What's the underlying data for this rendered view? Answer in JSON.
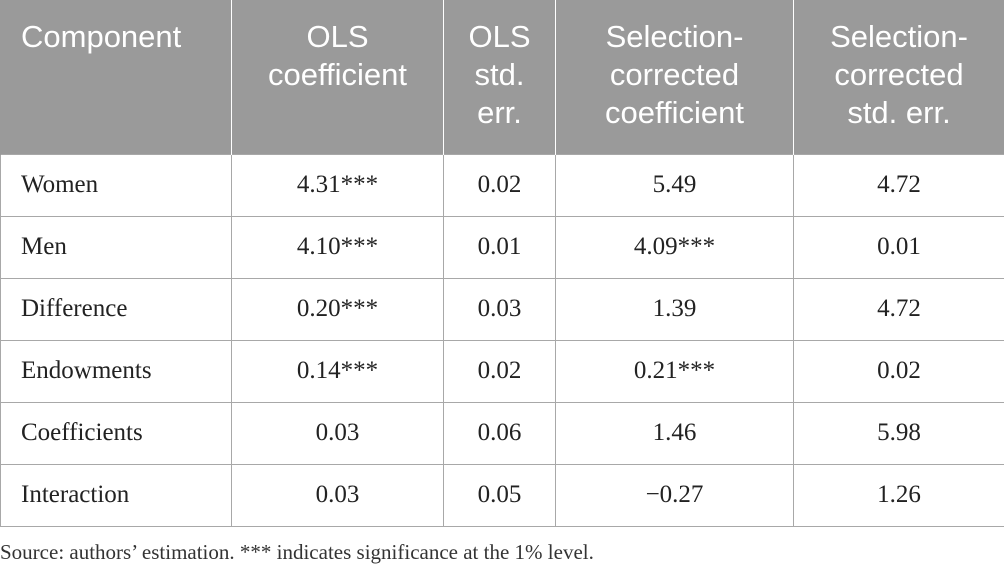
{
  "table": {
    "headers": [
      "Component",
      "OLS coefficient",
      "OLS std. err.",
      "Selection-corrected coefficient",
      "Selection-corrected std. err."
    ],
    "rows": [
      [
        "Women",
        "4.31***",
        "0.02",
        "5.49",
        "4.72"
      ],
      [
        "Men",
        "4.10***",
        "0.01",
        "4.09***",
        "0.01"
      ],
      [
        "Difference",
        "0.20***",
        "0.03",
        "1.39",
        "4.72"
      ],
      [
        "Endowments",
        "0.14***",
        "0.02",
        "0.21***",
        "0.02"
      ],
      [
        "Coefficients",
        "0.03",
        "0.06",
        "1.46",
        "5.98"
      ],
      [
        "Interaction",
        "0.03",
        "0.05",
        "−0.27",
        "1.26"
      ]
    ]
  },
  "footnote": "Source: authors’ estimation. *** indicates significance at the 1% level.",
  "colors": {
    "header_background": "#9a9a9a",
    "header_text": "#ffffff",
    "grid": "#a8a8a8"
  }
}
